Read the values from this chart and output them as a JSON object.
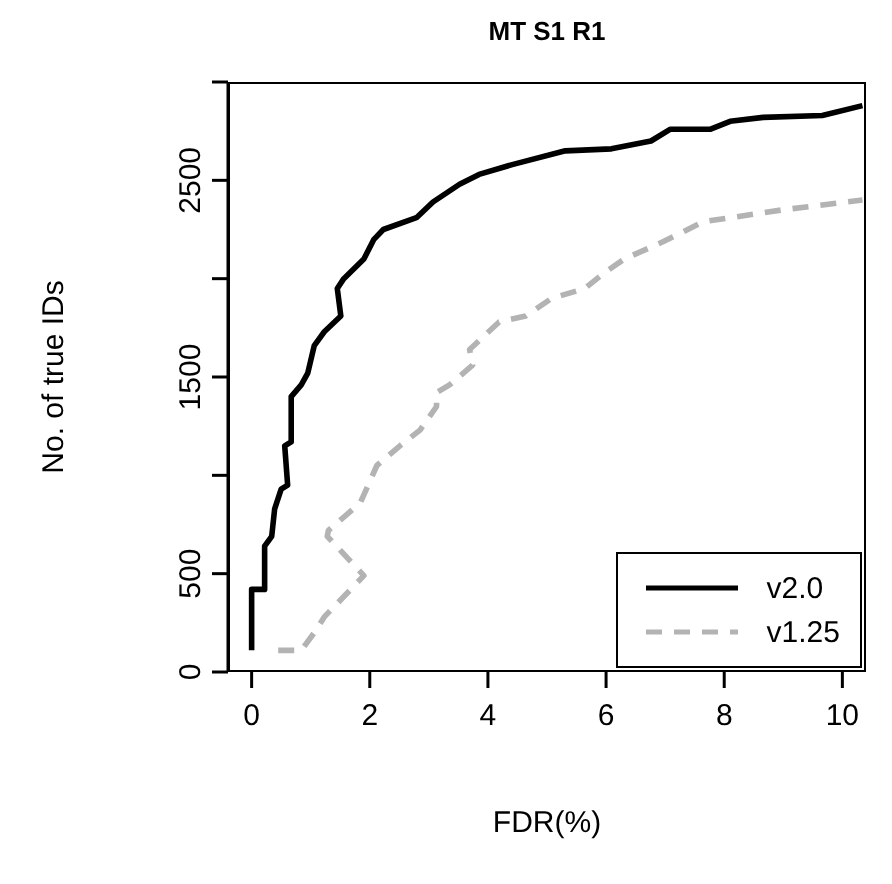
{
  "chart_data": {
    "type": "line",
    "title": "MT S1 R1",
    "xlabel": "FDR(%)",
    "ylabel": "No. of true IDs",
    "xlim": [
      -0.4,
      10.4
    ],
    "xticks": [
      0,
      2,
      4,
      6,
      8,
      10
    ],
    "ylim": [
      0,
      3000
    ],
    "yticks": [
      0,
      500,
      {
        "value": 1000,
        "label": null
      },
      1500,
      {
        "value": 2000,
        "label": null
      },
      2500,
      {
        "value": 3000,
        "label": null
      }
    ],
    "legend": "bottom right",
    "marker": "none",
    "series": [
      {
        "name": "v2.0",
        "color": "#000000",
        "line_style": "solid",
        "x": [
          0,
          0,
          0.22,
          0.22,
          0.34,
          0.39,
          0.5,
          0.61,
          0.56,
          0.67,
          0.67,
          0.84,
          0.95,
          1.06,
          1.23,
          1.51,
          1.45,
          1.56,
          1.9,
          2.07,
          2.23,
          2.79,
          3.07,
          3.52,
          3.85,
          4.41,
          5.31,
          6.09,
          6.76,
          7.09,
          7.77,
          8.1,
          8.66,
          9.66,
          10.34
        ],
        "values": [
          110,
          420,
          420,
          640,
          690,
          830,
          930,
          950,
          1150,
          1170,
          1400,
          1460,
          1520,
          1660,
          1730,
          1810,
          1950,
          2000,
          2100,
          2200,
          2250,
          2310,
          2390,
          2480,
          2530,
          2580,
          2650,
          2660,
          2700,
          2760,
          2760,
          2800,
          2820,
          2830,
          2880
        ]
      },
      {
        "name": "v1.25",
        "color": "#b3b3b3",
        "line_style": "dashed",
        "x": [
          0.45,
          0.84,
          1.06,
          1.23,
          1.9,
          1.28,
          1.3,
          1.84,
          2.12,
          2.51,
          2.85,
          3.13,
          3.13,
          3.35,
          3.74,
          3.69,
          4.19,
          4.64,
          5.08,
          5.64,
          5.97,
          6.31,
          6.98,
          7.65,
          8.1,
          8.99,
          10.34
        ],
        "values": [
          110,
          110,
          200,
          280,
          490,
          690,
          720,
          860,
          1050,
          1150,
          1230,
          1350,
          1420,
          1460,
          1560,
          1640,
          1780,
          1810,
          1900,
          1950,
          2030,
          2100,
          2190,
          2290,
          2310,
          2350,
          2400
        ]
      }
    ]
  }
}
